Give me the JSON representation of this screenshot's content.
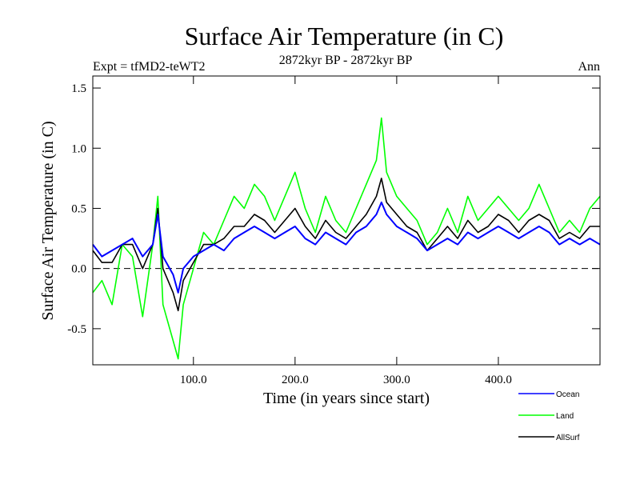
{
  "chart_data": {
    "type": "line",
    "title": "Surface Air Temperature (in C)",
    "subtitle": "2872kyr BP - 2872kyr BP",
    "experiment": "Expt = tfMD2-teWT2",
    "season": "Ann",
    "xlabel": "Time (in years since start)",
    "ylabel": "Surface Air Temperature (in C)",
    "xlim": [
      1,
      500
    ],
    "ylim": [
      -0.8,
      1.6
    ],
    "xticks": [
      100,
      200,
      300,
      400
    ],
    "xtick_labels": [
      "100.0",
      "200.0",
      "300.0",
      "400.0"
    ],
    "yticks": [
      -0.5,
      0,
      0.5,
      1.0,
      1.5
    ],
    "ytick_labels": [
      "-0.5",
      "0.0",
      "0.5",
      "1.0",
      "1.5"
    ],
    "reference_line": 0.0,
    "legend_position": "bottom-right",
    "series": [
      {
        "name": "Ocean",
        "color": "#0000ff",
        "x": [
          1,
          10,
          20,
          30,
          40,
          50,
          60,
          65,
          70,
          80,
          85,
          90,
          100,
          110,
          120,
          130,
          140,
          150,
          160,
          170,
          180,
          190,
          200,
          210,
          220,
          230,
          240,
          250,
          260,
          270,
          280,
          285,
          290,
          300,
          310,
          320,
          330,
          340,
          350,
          360,
          370,
          380,
          390,
          400,
          410,
          420,
          430,
          440,
          450,
          460,
          470,
          480,
          490,
          500
        ],
        "values": [
          0.2,
          0.1,
          0.15,
          0.2,
          0.25,
          0.1,
          0.2,
          0.45,
          0.1,
          -0.05,
          -0.2,
          0.0,
          0.1,
          0.15,
          0.2,
          0.15,
          0.25,
          0.3,
          0.35,
          0.3,
          0.25,
          0.3,
          0.35,
          0.25,
          0.2,
          0.3,
          0.25,
          0.2,
          0.3,
          0.35,
          0.45,
          0.55,
          0.45,
          0.35,
          0.3,
          0.25,
          0.15,
          0.2,
          0.25,
          0.2,
          0.3,
          0.25,
          0.3,
          0.35,
          0.3,
          0.25,
          0.3,
          0.35,
          0.3,
          0.2,
          0.25,
          0.2,
          0.25,
          0.2
        ]
      },
      {
        "name": "Land",
        "color": "#00ff00",
        "x": [
          1,
          10,
          20,
          30,
          40,
          50,
          60,
          65,
          70,
          80,
          85,
          90,
          100,
          110,
          120,
          130,
          140,
          150,
          160,
          170,
          180,
          190,
          200,
          210,
          220,
          230,
          240,
          250,
          260,
          270,
          280,
          285,
          290,
          300,
          310,
          320,
          330,
          340,
          350,
          360,
          370,
          380,
          390,
          400,
          410,
          420,
          430,
          440,
          450,
          460,
          470,
          480,
          490,
          500
        ],
        "values": [
          -0.2,
          -0.1,
          -0.3,
          0.2,
          0.1,
          -0.4,
          0.2,
          0.6,
          -0.3,
          -0.6,
          -0.75,
          -0.3,
          0.0,
          0.3,
          0.2,
          0.4,
          0.6,
          0.5,
          0.7,
          0.6,
          0.4,
          0.6,
          0.8,
          0.5,
          0.3,
          0.6,
          0.4,
          0.3,
          0.5,
          0.7,
          0.9,
          1.25,
          0.8,
          0.6,
          0.5,
          0.4,
          0.2,
          0.3,
          0.5,
          0.3,
          0.6,
          0.4,
          0.5,
          0.6,
          0.5,
          0.4,
          0.5,
          0.7,
          0.5,
          0.3,
          0.4,
          0.3,
          0.5,
          0.6
        ]
      },
      {
        "name": "AllSurf",
        "color": "#000000",
        "x": [
          1,
          10,
          20,
          30,
          40,
          50,
          60,
          65,
          70,
          80,
          85,
          90,
          100,
          110,
          120,
          130,
          140,
          150,
          160,
          170,
          180,
          190,
          200,
          210,
          220,
          230,
          240,
          250,
          260,
          270,
          280,
          285,
          290,
          300,
          310,
          320,
          330,
          340,
          350,
          360,
          370,
          380,
          390,
          400,
          410,
          420,
          430,
          440,
          450,
          460,
          470,
          480,
          490,
          500
        ],
        "values": [
          0.15,
          0.05,
          0.05,
          0.2,
          0.2,
          0.0,
          0.2,
          0.5,
          0.0,
          -0.2,
          -0.35,
          -0.1,
          0.05,
          0.2,
          0.2,
          0.25,
          0.35,
          0.35,
          0.45,
          0.4,
          0.3,
          0.4,
          0.5,
          0.35,
          0.25,
          0.4,
          0.3,
          0.25,
          0.35,
          0.45,
          0.6,
          0.75,
          0.55,
          0.45,
          0.35,
          0.3,
          0.15,
          0.25,
          0.35,
          0.25,
          0.4,
          0.3,
          0.35,
          0.45,
          0.4,
          0.3,
          0.4,
          0.45,
          0.4,
          0.25,
          0.3,
          0.25,
          0.35,
          0.35
        ]
      }
    ]
  }
}
